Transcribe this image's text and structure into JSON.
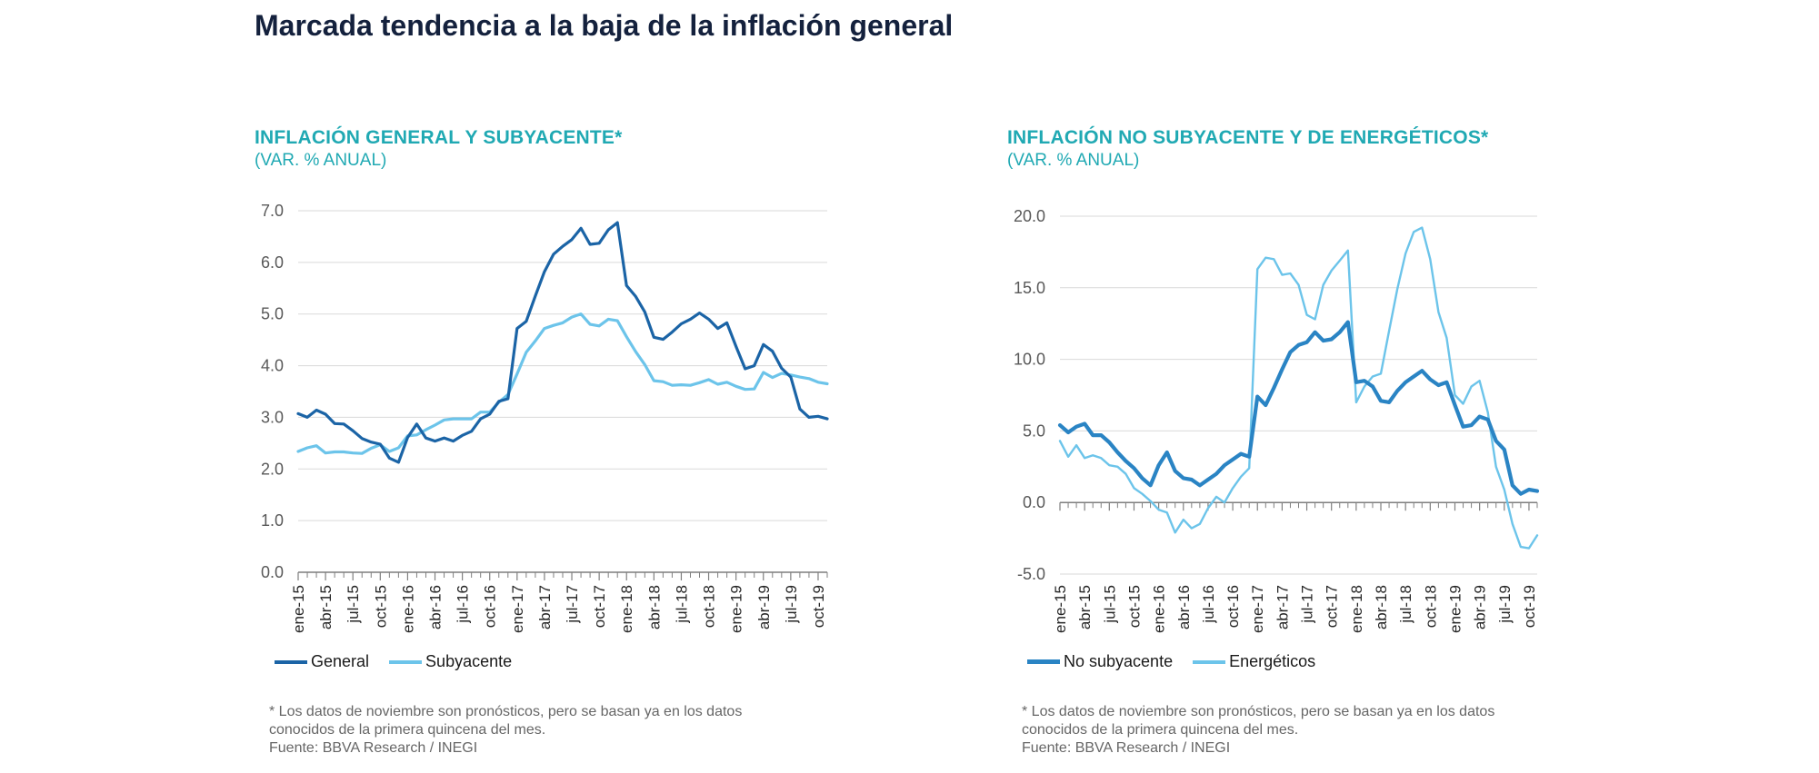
{
  "title": "Marcada tendencia a la baja de la inflación general",
  "footnote": {
    "line1": "* Los datos de noviembre son pronósticos, pero se basan ya en los datos",
    "line2": "conocidos de la primera quincena del mes.",
    "source": "Fuente: BBVA Research / INEGI"
  },
  "chart_data": [
    {
      "type": "line",
      "title": "INFLACIÓN GENERAL Y SUBYACENTE*",
      "subtitle": "(VAR. % ANUAL)",
      "x_tick_labels": [
        "ene-15",
        "abr-15",
        "jul-15",
        "oct-15",
        "ene-16",
        "abr-16",
        "jul-16",
        "oct-16",
        "ene-17",
        "abr-17",
        "jul-17",
        "oct-17",
        "ene-18",
        "abr-18",
        "jul-18",
        "oct-18",
        "ene-19",
        "abr-19",
        "jul-19",
        "oct-19"
      ],
      "y_tick_labels": [
        "0.0",
        "1.0",
        "2.0",
        "3.0",
        "4.0",
        "5.0",
        "6.0",
        "7.0"
      ],
      "ylim": [
        0,
        7
      ],
      "grid": true,
      "legend_position": "bottom-left",
      "x": [
        "ene-15",
        "feb-15",
        "mar-15",
        "abr-15",
        "may-15",
        "jun-15",
        "jul-15",
        "ago-15",
        "sep-15",
        "oct-15",
        "nov-15",
        "dic-15",
        "ene-16",
        "feb-16",
        "mar-16",
        "abr-16",
        "may-16",
        "jun-16",
        "jul-16",
        "ago-16",
        "sep-16",
        "oct-16",
        "nov-16",
        "dic-16",
        "ene-17",
        "feb-17",
        "mar-17",
        "abr-17",
        "may-17",
        "jun-17",
        "jul-17",
        "ago-17",
        "sep-17",
        "oct-17",
        "nov-17",
        "dic-17",
        "ene-18",
        "feb-18",
        "mar-18",
        "abr-18",
        "may-18",
        "jun-18",
        "jul-18",
        "ago-18",
        "sep-18",
        "oct-18",
        "nov-18",
        "dic-18",
        "ene-19",
        "feb-19",
        "mar-19",
        "abr-19",
        "may-19",
        "jun-19",
        "jul-19",
        "ago-19",
        "sep-19",
        "oct-19",
        "nov-19"
      ],
      "series": [
        {
          "name": "General",
          "color": "#1b64a6",
          "values": [
            3.07,
            3.0,
            3.14,
            3.06,
            2.88,
            2.87,
            2.74,
            2.59,
            2.52,
            2.48,
            2.21,
            2.13,
            2.61,
            2.87,
            2.6,
            2.54,
            2.6,
            2.54,
            2.65,
            2.73,
            2.97,
            3.06,
            3.31,
            3.36,
            4.72,
            4.86,
            5.35,
            5.82,
            6.16,
            6.31,
            6.44,
            6.66,
            6.35,
            6.37,
            6.63,
            6.77,
            5.55,
            5.34,
            5.04,
            4.55,
            4.51,
            4.65,
            4.81,
            4.9,
            5.02,
            4.9,
            4.72,
            4.83,
            4.37,
            3.94,
            4.0,
            4.41,
            4.28,
            3.95,
            3.78,
            3.16,
            3.0,
            3.02,
            2.97
          ]
        },
        {
          "name": "Subyacente",
          "color": "#6cc4ea",
          "values": [
            2.34,
            2.41,
            2.45,
            2.31,
            2.33,
            2.33,
            2.31,
            2.3,
            2.4,
            2.47,
            2.34,
            2.41,
            2.64,
            2.66,
            2.76,
            2.85,
            2.95,
            2.97,
            2.97,
            2.97,
            3.1,
            3.1,
            3.29,
            3.44,
            3.84,
            4.26,
            4.48,
            4.72,
            4.78,
            4.83,
            4.94,
            5.0,
            4.8,
            4.77,
            4.9,
            4.87,
            4.56,
            4.27,
            4.02,
            3.71,
            3.69,
            3.62,
            3.63,
            3.62,
            3.67,
            3.73,
            3.64,
            3.68,
            3.6,
            3.54,
            3.55,
            3.87,
            3.77,
            3.85,
            3.82,
            3.78,
            3.75,
            3.68,
            3.65
          ]
        }
      ]
    },
    {
      "type": "line",
      "title": "INFLACIÓN NO SUBYACENTE Y DE ENERGÉTICOS*",
      "subtitle": "(VAR. % ANUAL)",
      "x_tick_labels": [
        "ene-15",
        "abr-15",
        "jul-15",
        "oct-15",
        "ene-16",
        "abr-16",
        "jul-16",
        "oct-16",
        "ene-17",
        "abr-17",
        "jul-17",
        "oct-17",
        "ene-18",
        "abr-18",
        "jul-18",
        "oct-18",
        "ene-19",
        "abr-19",
        "jul-19",
        "oct-19"
      ],
      "y_tick_labels": [
        "-5.0",
        "0.0",
        "5.0",
        "10.0",
        "15.0",
        "20.0"
      ],
      "ylim": [
        -5,
        20
      ],
      "grid": true,
      "legend_position": "bottom-left",
      "x": [
        "ene-15",
        "feb-15",
        "mar-15",
        "abr-15",
        "may-15",
        "jun-15",
        "jul-15",
        "ago-15",
        "sep-15",
        "oct-15",
        "nov-15",
        "dic-15",
        "ene-16",
        "feb-16",
        "mar-16",
        "abr-16",
        "may-16",
        "jun-16",
        "jul-16",
        "ago-16",
        "sep-16",
        "oct-16",
        "nov-16",
        "dic-16",
        "ene-17",
        "feb-17",
        "mar-17",
        "abr-17",
        "may-17",
        "jun-17",
        "jul-17",
        "ago-17",
        "sep-17",
        "oct-17",
        "nov-17",
        "dic-17",
        "ene-18",
        "feb-18",
        "mar-18",
        "abr-18",
        "may-18",
        "jun-18",
        "jul-18",
        "ago-18",
        "sep-18",
        "oct-18",
        "nov-18",
        "dic-18",
        "ene-19",
        "feb-19",
        "mar-19",
        "abr-19",
        "may-19",
        "jun-19",
        "jul-19",
        "ago-19",
        "sep-19",
        "oct-19",
        "nov-19"
      ],
      "series": [
        {
          "name": "No subyacente",
          "color": "#2a84c4",
          "values": [
            5.4,
            4.9,
            5.3,
            5.5,
            4.7,
            4.7,
            4.2,
            3.5,
            2.9,
            2.4,
            1.7,
            1.2,
            2.6,
            3.5,
            2.2,
            1.7,
            1.6,
            1.2,
            1.6,
            2.0,
            2.6,
            3.0,
            3.4,
            3.2,
            7.4,
            6.8,
            8.0,
            9.3,
            10.5,
            11.0,
            11.2,
            11.9,
            11.3,
            11.4,
            11.9,
            12.6,
            8.4,
            8.5,
            8.1,
            7.1,
            7.0,
            7.8,
            8.4,
            8.8,
            9.2,
            8.6,
            8.2,
            8.4,
            6.8,
            5.3,
            5.4,
            6.0,
            5.8,
            4.3,
            3.7,
            1.2,
            0.6,
            0.9,
            0.8
          ]
        },
        {
          "name": "Energéticos",
          "color": "#6cc4ea",
          "values": [
            4.3,
            3.2,
            4.0,
            3.1,
            3.3,
            3.1,
            2.6,
            2.5,
            2.0,
            1.0,
            0.6,
            0.1,
            -0.5,
            -0.7,
            -2.1,
            -1.2,
            -1.8,
            -1.5,
            -0.4,
            0.4,
            0.0,
            1.0,
            1.8,
            2.4,
            16.3,
            17.1,
            17.0,
            15.9,
            16.0,
            15.2,
            13.1,
            12.8,
            15.2,
            16.2,
            16.9,
            17.6,
            7.0,
            8.1,
            8.8,
            9.0,
            12.0,
            14.9,
            17.4,
            18.9,
            19.2,
            17.0,
            13.3,
            11.5,
            7.5,
            6.9,
            8.1,
            8.5,
            6.3,
            2.5,
            0.9,
            -1.5,
            -3.1,
            -3.2,
            -2.3
          ]
        }
      ]
    }
  ]
}
